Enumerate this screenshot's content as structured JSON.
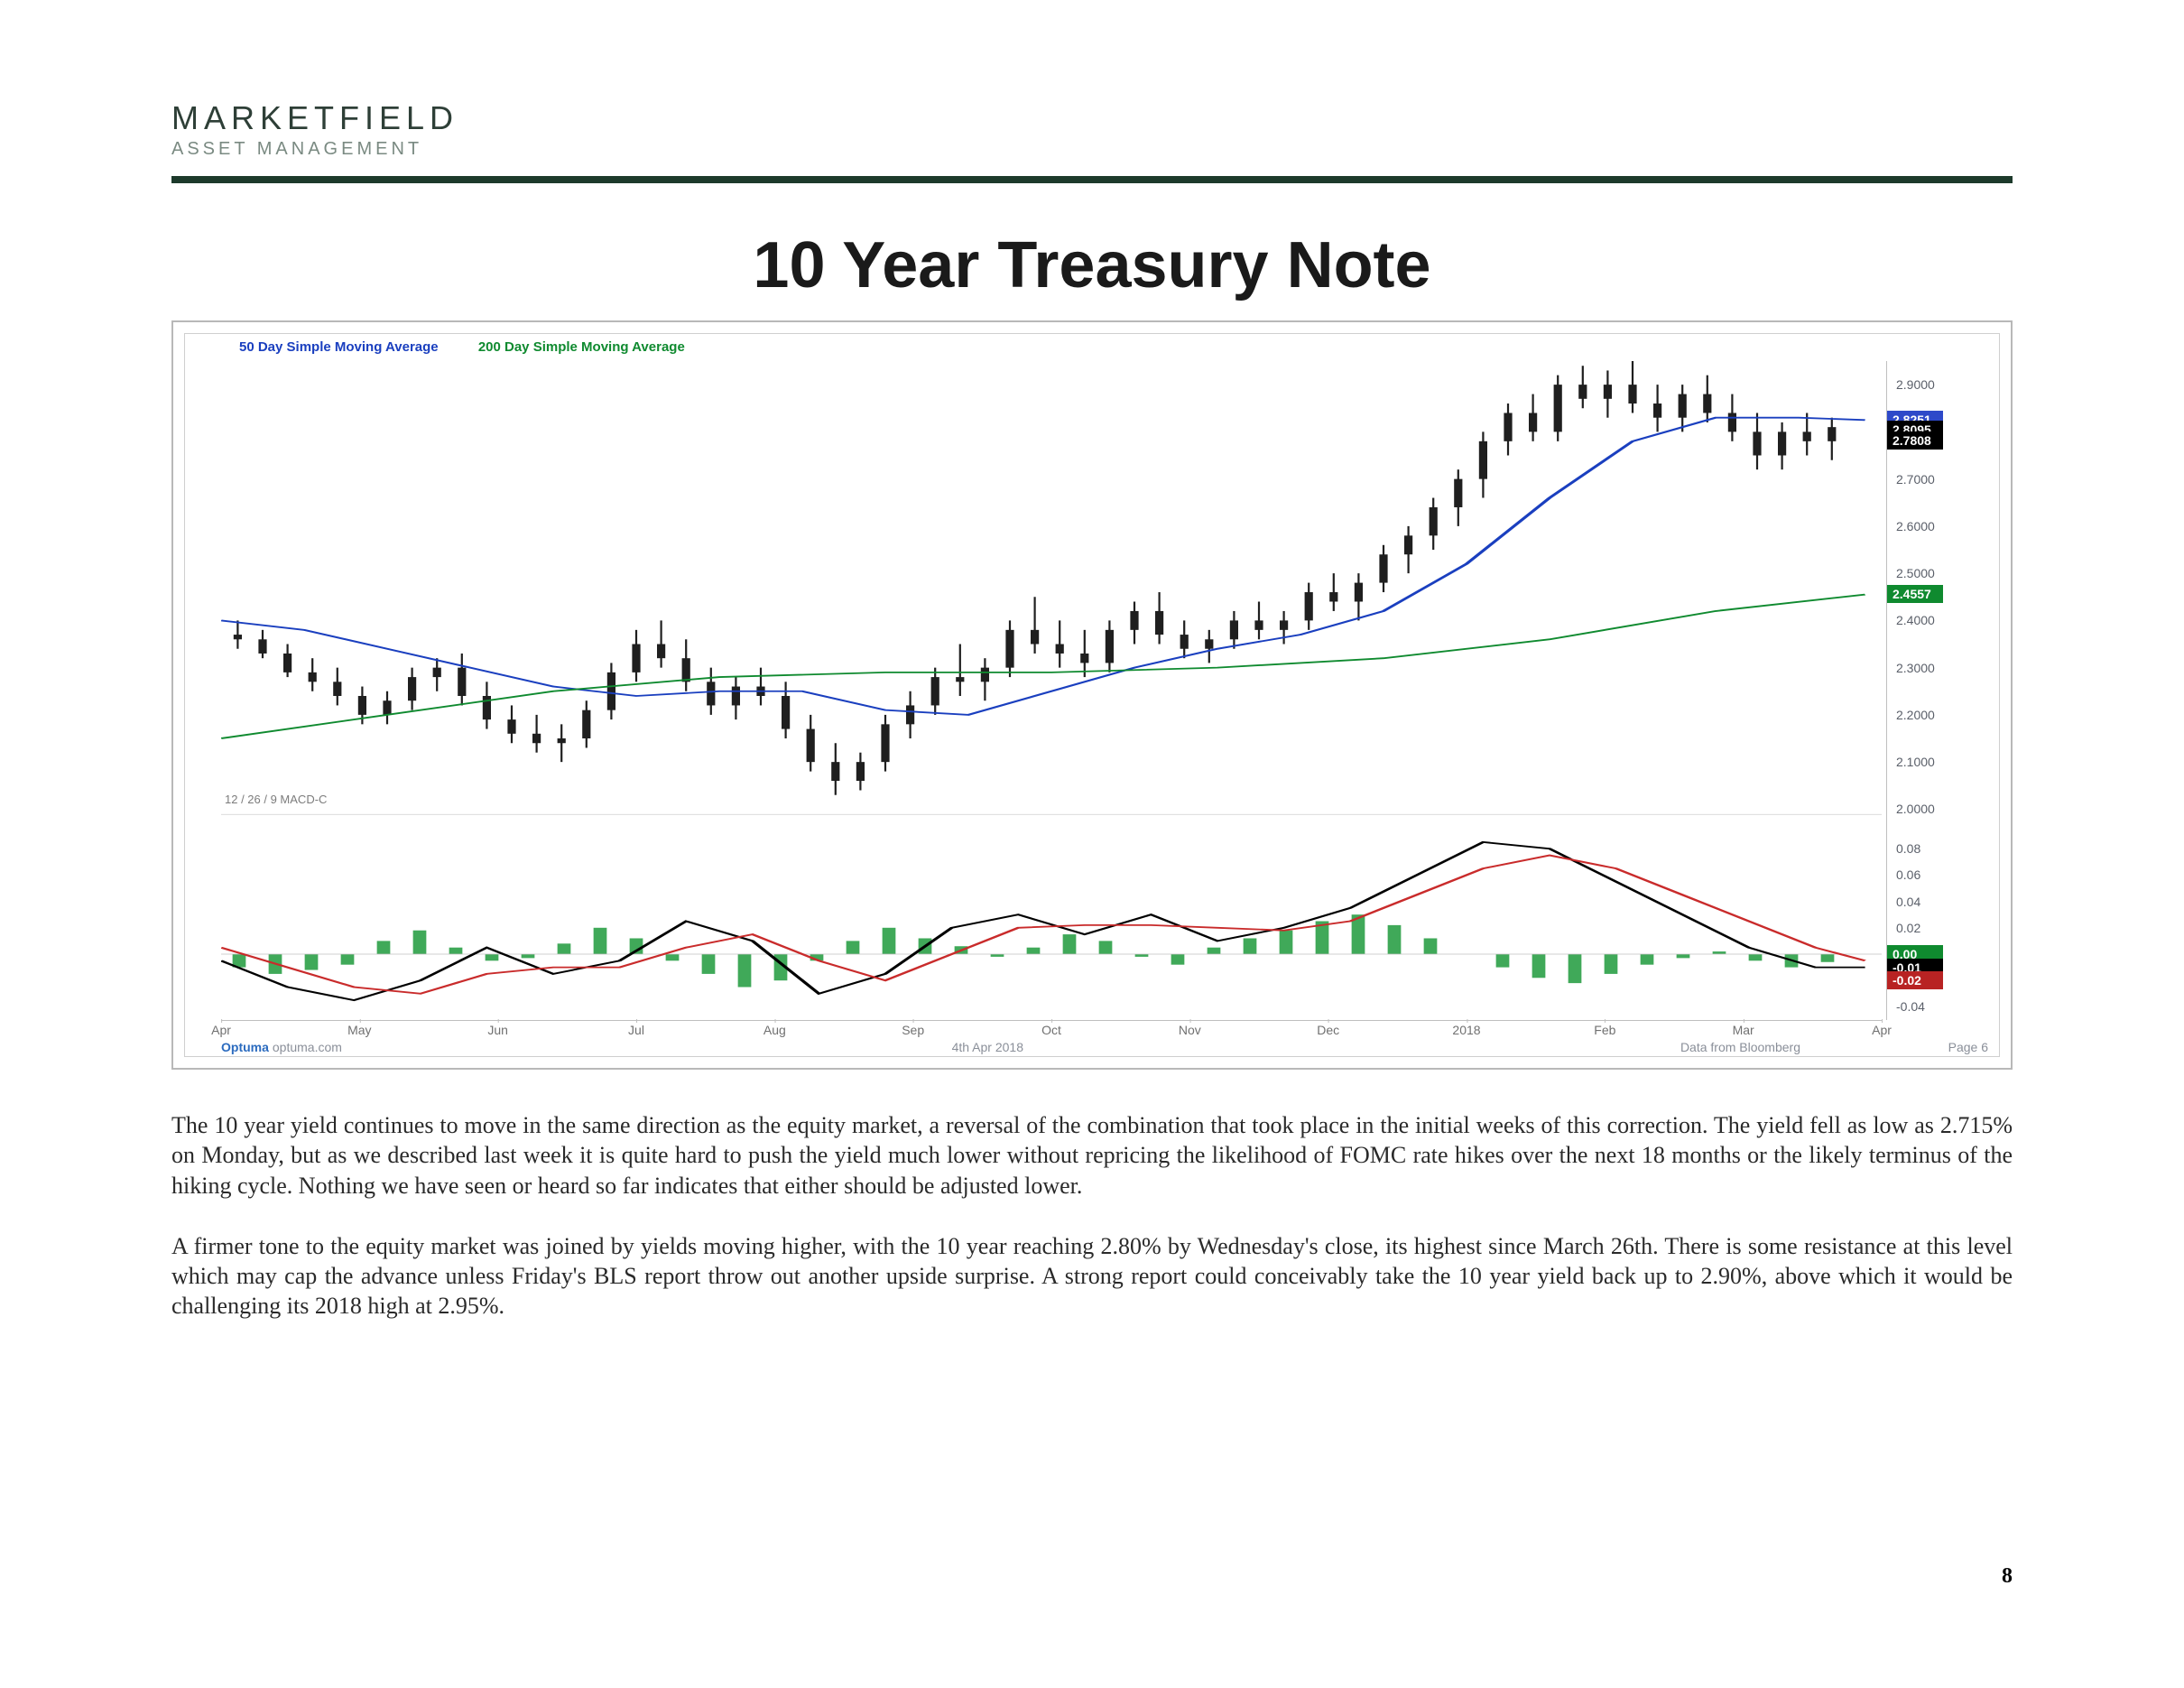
{
  "brand": {
    "main": "MARKETFIELD",
    "sub": "ASSET MANAGEMENT",
    "main_color": "#2e3f37",
    "sub_color": "#7a8a82",
    "rule_color": "#1d3a2b"
  },
  "title": "10 Year Treasury Note",
  "chart": {
    "legend": {
      "sma50": {
        "label": "50 Day Simple Moving Average",
        "color": "#1a3fbf"
      },
      "sma200": {
        "label": "200 Day Simple Moving Average",
        "color": "#0f8a2f"
      }
    },
    "macd_label": "12 / 26 / 9 MACD-C",
    "price_panel": {
      "ylim": [
        2.0,
        2.95
      ],
      "yticks": [
        "2.0000",
        "2.1000",
        "2.2000",
        "2.3000",
        "2.4000",
        "2.5000",
        "2.6000",
        "2.7000",
        "2.9000"
      ],
      "badges": [
        {
          "value": "2.8251",
          "bg": "#2e49c9",
          "y": 2.8251
        },
        {
          "value": "2.8095",
          "bg": "#000000",
          "y": 2.805
        },
        {
          "value": "2.7808",
          "bg": "#000000",
          "y": 2.7808
        },
        {
          "value": "2.4557",
          "bg": "#0f8a2f",
          "y": 2.4557
        }
      ]
    },
    "macd_panel": {
      "ylim": [
        -0.05,
        0.09
      ],
      "yticks": [
        "-0.04",
        "0.00",
        "0.02",
        "0.04",
        "0.06",
        "0.08"
      ],
      "badges": [
        {
          "value": "-0.01",
          "bg": "#000000",
          "y": -0.01
        },
        {
          "value": "-0.02",
          "bg": "#b82323",
          "y": -0.02
        }
      ],
      "zero_badge": {
        "value": "0.00",
        "bg": "#0f8a2f",
        "y": 0.0
      }
    },
    "x_labels": [
      "Apr",
      "May",
      "Jun",
      "Jul",
      "Aug",
      "Sep",
      "Oct",
      "Nov",
      "Dec",
      "2018",
      "Feb",
      "Mar",
      "Apr"
    ],
    "footer": {
      "brand": "Optuma",
      "brand_sub": "optuma.com",
      "date": "4th Apr 2018",
      "source": "Data from Bloomberg",
      "page": "Page 6"
    },
    "colors": {
      "candle_body": "#1f1f1f",
      "sma50_line": "#1a3fbf",
      "sma200_line": "#0f8a2f",
      "macd_line": "#000000",
      "macd_signal": "#c92b2b",
      "macd_hist": "#1f9a3c",
      "grid": "#cfcfcf",
      "frame": "#b8b8b8"
    },
    "price_candles": [
      {
        "x": 0.01,
        "o": 2.37,
        "h": 2.4,
        "l": 2.34,
        "c": 2.36
      },
      {
        "x": 0.025,
        "o": 2.36,
        "h": 2.38,
        "l": 2.32,
        "c": 2.33
      },
      {
        "x": 0.04,
        "o": 2.33,
        "h": 2.35,
        "l": 2.28,
        "c": 2.29
      },
      {
        "x": 0.055,
        "o": 2.29,
        "h": 2.32,
        "l": 2.25,
        "c": 2.27
      },
      {
        "x": 0.07,
        "o": 2.27,
        "h": 2.3,
        "l": 2.22,
        "c": 2.24
      },
      {
        "x": 0.085,
        "o": 2.24,
        "h": 2.26,
        "l": 2.18,
        "c": 2.2
      },
      {
        "x": 0.1,
        "o": 2.2,
        "h": 2.25,
        "l": 2.18,
        "c": 2.23
      },
      {
        "x": 0.115,
        "o": 2.23,
        "h": 2.3,
        "l": 2.21,
        "c": 2.28
      },
      {
        "x": 0.13,
        "o": 2.28,
        "h": 2.32,
        "l": 2.25,
        "c": 2.3
      },
      {
        "x": 0.145,
        "o": 2.3,
        "h": 2.33,
        "l": 2.22,
        "c": 2.24
      },
      {
        "x": 0.16,
        "o": 2.24,
        "h": 2.27,
        "l": 2.17,
        "c": 2.19
      },
      {
        "x": 0.175,
        "o": 2.19,
        "h": 2.22,
        "l": 2.14,
        "c": 2.16
      },
      {
        "x": 0.19,
        "o": 2.16,
        "h": 2.2,
        "l": 2.12,
        "c": 2.14
      },
      {
        "x": 0.205,
        "o": 2.14,
        "h": 2.18,
        "l": 2.1,
        "c": 2.15
      },
      {
        "x": 0.22,
        "o": 2.15,
        "h": 2.23,
        "l": 2.13,
        "c": 2.21
      },
      {
        "x": 0.235,
        "o": 2.21,
        "h": 2.31,
        "l": 2.19,
        "c": 2.29
      },
      {
        "x": 0.25,
        "o": 2.29,
        "h": 2.38,
        "l": 2.27,
        "c": 2.35
      },
      {
        "x": 0.265,
        "o": 2.35,
        "h": 2.4,
        "l": 2.3,
        "c": 2.32
      },
      {
        "x": 0.28,
        "o": 2.32,
        "h": 2.36,
        "l": 2.25,
        "c": 2.27
      },
      {
        "x": 0.295,
        "o": 2.27,
        "h": 2.3,
        "l": 2.2,
        "c": 2.22
      },
      {
        "x": 0.31,
        "o": 2.22,
        "h": 2.28,
        "l": 2.19,
        "c": 2.26
      },
      {
        "x": 0.325,
        "o": 2.26,
        "h": 2.3,
        "l": 2.22,
        "c": 2.24
      },
      {
        "x": 0.34,
        "o": 2.24,
        "h": 2.27,
        "l": 2.15,
        "c": 2.17
      },
      {
        "x": 0.355,
        "o": 2.17,
        "h": 2.2,
        "l": 2.08,
        "c": 2.1
      },
      {
        "x": 0.37,
        "o": 2.1,
        "h": 2.14,
        "l": 2.03,
        "c": 2.06
      },
      {
        "x": 0.385,
        "o": 2.06,
        "h": 2.12,
        "l": 2.04,
        "c": 2.1
      },
      {
        "x": 0.4,
        "o": 2.1,
        "h": 2.2,
        "l": 2.08,
        "c": 2.18
      },
      {
        "x": 0.415,
        "o": 2.18,
        "h": 2.25,
        "l": 2.15,
        "c": 2.22
      },
      {
        "x": 0.43,
        "o": 2.22,
        "h": 2.3,
        "l": 2.2,
        "c": 2.28
      },
      {
        "x": 0.445,
        "o": 2.28,
        "h": 2.35,
        "l": 2.24,
        "c": 2.27
      },
      {
        "x": 0.46,
        "o": 2.27,
        "h": 2.32,
        "l": 2.23,
        "c": 2.3
      },
      {
        "x": 0.475,
        "o": 2.3,
        "h": 2.4,
        "l": 2.28,
        "c": 2.38
      },
      {
        "x": 0.49,
        "o": 2.38,
        "h": 2.45,
        "l": 2.33,
        "c": 2.35
      },
      {
        "x": 0.505,
        "o": 2.35,
        "h": 2.4,
        "l": 2.3,
        "c": 2.33
      },
      {
        "x": 0.52,
        "o": 2.33,
        "h": 2.38,
        "l": 2.28,
        "c": 2.31
      },
      {
        "x": 0.535,
        "o": 2.31,
        "h": 2.4,
        "l": 2.29,
        "c": 2.38
      },
      {
        "x": 0.55,
        "o": 2.38,
        "h": 2.44,
        "l": 2.35,
        "c": 2.42
      },
      {
        "x": 0.565,
        "o": 2.42,
        "h": 2.46,
        "l": 2.35,
        "c": 2.37
      },
      {
        "x": 0.58,
        "o": 2.37,
        "h": 2.4,
        "l": 2.32,
        "c": 2.34
      },
      {
        "x": 0.595,
        "o": 2.34,
        "h": 2.38,
        "l": 2.31,
        "c": 2.36
      },
      {
        "x": 0.61,
        "o": 2.36,
        "h": 2.42,
        "l": 2.34,
        "c": 2.4
      },
      {
        "x": 0.625,
        "o": 2.4,
        "h": 2.44,
        "l": 2.36,
        "c": 2.38
      },
      {
        "x": 0.64,
        "o": 2.38,
        "h": 2.42,
        "l": 2.35,
        "c": 2.4
      },
      {
        "x": 0.655,
        "o": 2.4,
        "h": 2.48,
        "l": 2.38,
        "c": 2.46
      },
      {
        "x": 0.67,
        "o": 2.46,
        "h": 2.5,
        "l": 2.42,
        "c": 2.44
      },
      {
        "x": 0.685,
        "o": 2.44,
        "h": 2.5,
        "l": 2.4,
        "c": 2.48
      },
      {
        "x": 0.7,
        "o": 2.48,
        "h": 2.56,
        "l": 2.46,
        "c": 2.54
      },
      {
        "x": 0.715,
        "o": 2.54,
        "h": 2.6,
        "l": 2.5,
        "c": 2.58
      },
      {
        "x": 0.73,
        "o": 2.58,
        "h": 2.66,
        "l": 2.55,
        "c": 2.64
      },
      {
        "x": 0.745,
        "o": 2.64,
        "h": 2.72,
        "l": 2.6,
        "c": 2.7
      },
      {
        "x": 0.76,
        "o": 2.7,
        "h": 2.8,
        "l": 2.66,
        "c": 2.78
      },
      {
        "x": 0.775,
        "o": 2.78,
        "h": 2.86,
        "l": 2.75,
        "c": 2.84
      },
      {
        "x": 0.79,
        "o": 2.84,
        "h": 2.88,
        "l": 2.78,
        "c": 2.8
      },
      {
        "x": 0.805,
        "o": 2.8,
        "h": 2.92,
        "l": 2.78,
        "c": 2.9
      },
      {
        "x": 0.82,
        "o": 2.9,
        "h": 2.94,
        "l": 2.85,
        "c": 2.87
      },
      {
        "x": 0.835,
        "o": 2.87,
        "h": 2.93,
        "l": 2.83,
        "c": 2.9
      },
      {
        "x": 0.85,
        "o": 2.9,
        "h": 2.95,
        "l": 2.84,
        "c": 2.86
      },
      {
        "x": 0.865,
        "o": 2.86,
        "h": 2.9,
        "l": 2.8,
        "c": 2.83
      },
      {
        "x": 0.88,
        "o": 2.83,
        "h": 2.9,
        "l": 2.8,
        "c": 2.88
      },
      {
        "x": 0.895,
        "o": 2.88,
        "h": 2.92,
        "l": 2.82,
        "c": 2.84
      },
      {
        "x": 0.91,
        "o": 2.84,
        "h": 2.88,
        "l": 2.78,
        "c": 2.8
      },
      {
        "x": 0.925,
        "o": 2.8,
        "h": 2.84,
        "l": 2.72,
        "c": 2.75
      },
      {
        "x": 0.94,
        "o": 2.75,
        "h": 2.82,
        "l": 2.72,
        "c": 2.8
      },
      {
        "x": 0.955,
        "o": 2.8,
        "h": 2.84,
        "l": 2.75,
        "c": 2.78
      },
      {
        "x": 0.97,
        "o": 2.78,
        "h": 2.83,
        "l": 2.74,
        "c": 2.81
      }
    ],
    "sma50_line": [
      [
        0.0,
        2.4
      ],
      [
        0.05,
        2.38
      ],
      [
        0.1,
        2.34
      ],
      [
        0.15,
        2.3
      ],
      [
        0.2,
        2.26
      ],
      [
        0.25,
        2.24
      ],
      [
        0.3,
        2.25
      ],
      [
        0.35,
        2.25
      ],
      [
        0.4,
        2.21
      ],
      [
        0.45,
        2.2
      ],
      [
        0.5,
        2.25
      ],
      [
        0.55,
        2.3
      ],
      [
        0.6,
        2.34
      ],
      [
        0.65,
        2.37
      ],
      [
        0.7,
        2.42
      ],
      [
        0.75,
        2.52
      ],
      [
        0.8,
        2.66
      ],
      [
        0.85,
        2.78
      ],
      [
        0.9,
        2.83
      ],
      [
        0.95,
        2.83
      ],
      [
        0.99,
        2.825
      ]
    ],
    "sma200_line": [
      [
        0.0,
        2.15
      ],
      [
        0.1,
        2.2
      ],
      [
        0.2,
        2.25
      ],
      [
        0.3,
        2.28
      ],
      [
        0.4,
        2.29
      ],
      [
        0.5,
        2.29
      ],
      [
        0.6,
        2.3
      ],
      [
        0.7,
        2.32
      ],
      [
        0.8,
        2.36
      ],
      [
        0.9,
        2.42
      ],
      [
        0.99,
        2.455
      ]
    ],
    "macd_line_pts": [
      [
        0.0,
        -0.005
      ],
      [
        0.04,
        -0.025
      ],
      [
        0.08,
        -0.035
      ],
      [
        0.12,
        -0.02
      ],
      [
        0.16,
        0.005
      ],
      [
        0.2,
        -0.015
      ],
      [
        0.24,
        -0.005
      ],
      [
        0.28,
        0.025
      ],
      [
        0.32,
        0.01
      ],
      [
        0.36,
        -0.03
      ],
      [
        0.4,
        -0.015
      ],
      [
        0.44,
        0.02
      ],
      [
        0.48,
        0.03
      ],
      [
        0.52,
        0.015
      ],
      [
        0.56,
        0.03
      ],
      [
        0.6,
        0.01
      ],
      [
        0.64,
        0.02
      ],
      [
        0.68,
        0.035
      ],
      [
        0.72,
        0.06
      ],
      [
        0.76,
        0.085
      ],
      [
        0.8,
        0.08
      ],
      [
        0.84,
        0.055
      ],
      [
        0.88,
        0.03
      ],
      [
        0.92,
        0.005
      ],
      [
        0.96,
        -0.01
      ],
      [
        0.99,
        -0.01
      ]
    ],
    "macd_signal_pts": [
      [
        0.0,
        0.005
      ],
      [
        0.04,
        -0.01
      ],
      [
        0.08,
        -0.025
      ],
      [
        0.12,
        -0.03
      ],
      [
        0.16,
        -0.015
      ],
      [
        0.2,
        -0.01
      ],
      [
        0.24,
        -0.01
      ],
      [
        0.28,
        0.005
      ],
      [
        0.32,
        0.015
      ],
      [
        0.36,
        -0.005
      ],
      [
        0.4,
        -0.02
      ],
      [
        0.44,
        0.0
      ],
      [
        0.48,
        0.02
      ],
      [
        0.52,
        0.022
      ],
      [
        0.56,
        0.022
      ],
      [
        0.6,
        0.02
      ],
      [
        0.64,
        0.018
      ],
      [
        0.68,
        0.025
      ],
      [
        0.72,
        0.045
      ],
      [
        0.76,
        0.065
      ],
      [
        0.8,
        0.075
      ],
      [
        0.84,
        0.065
      ],
      [
        0.88,
        0.045
      ],
      [
        0.92,
        0.025
      ],
      [
        0.96,
        0.005
      ],
      [
        0.99,
        -0.005
      ]
    ],
    "macd_hist": [
      -0.01,
      -0.015,
      -0.012,
      -0.008,
      0.01,
      0.018,
      0.005,
      -0.005,
      -0.003,
      0.008,
      0.02,
      0.012,
      -0.005,
      -0.015,
      -0.025,
      -0.02,
      -0.005,
      0.01,
      0.02,
      0.012,
      0.006,
      -0.002,
      0.005,
      0.015,
      0.01,
      -0.002,
      -0.008,
      0.005,
      0.012,
      0.018,
      0.025,
      0.03,
      0.022,
      0.012,
      0.0,
      -0.01,
      -0.018,
      -0.022,
      -0.015,
      -0.008,
      -0.003,
      0.002,
      -0.005,
      -0.01,
      -0.006,
      0.0
    ]
  },
  "paragraphs": {
    "p1": "The 10 year yield continues to move in the same direction as the equity market, a reversal of the combination that took place in the initial weeks of this correction. The yield fell as low as 2.715% on Monday, but as we described last week it is quite hard to push the yield much lower without repricing the likelihood of FOMC rate hikes over the next 18 months or the likely terminus of the hiking cycle. Nothing we have seen or heard so far indicates that either should be adjusted lower.",
    "p2": "A firmer tone to the equity market was joined by yields moving higher, with the 10 year reaching 2.80% by Wednesday's close, its highest since March 26th. There is some resistance at this level which may cap the advance unless Friday's BLS report throw out another upside surprise. A strong report could conceivably take the 10 year yield back up to 2.90%, above which it would be challenging its 2018 high at 2.95%."
  },
  "page_number": "8"
}
